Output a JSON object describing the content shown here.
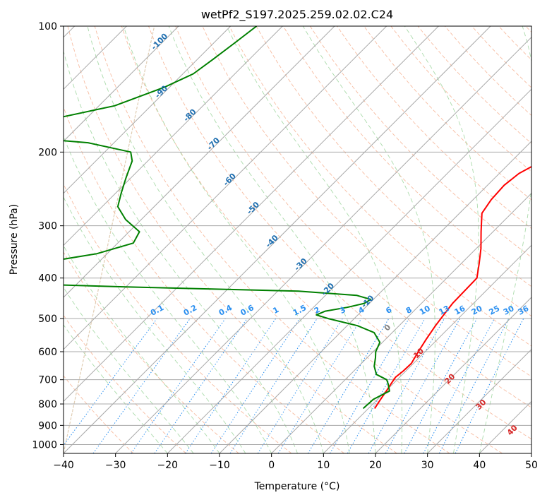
{
  "chart_data": {
    "type": "line",
    "title": "wetPf2_S197.2025.259.02.02.C24",
    "xlabel": "Temperature (°C)",
    "ylabel": "Pressure (hPa)",
    "xlim": [
      -40,
      50
    ],
    "ylim": [
      1050,
      100
    ],
    "y_scale": "log",
    "skew": "skew-T",
    "grid": true,
    "x_ticks": [
      -40,
      -30,
      -20,
      -10,
      0,
      10,
      20,
      30,
      40,
      50
    ],
    "y_ticks": [
      100,
      200,
      300,
      400,
      500,
      600,
      700,
      800,
      900,
      1000
    ],
    "series": [
      {
        "role": "temperature",
        "color": "#ff0000",
        "p": [
          820,
          780,
          745,
          715,
          690,
          668,
          640,
          600,
          560,
          520,
          490,
          460,
          430,
          400,
          370,
          340,
          310,
          280,
          260,
          240,
          225,
          210,
          200,
          188,
          175,
          160,
          145,
          130,
          115,
          100
        ],
        "t": [
          11.2,
          10.6,
          10.1,
          9.6,
          9.2,
          9.5,
          9.6,
          8.7,
          7.8,
          7.0,
          6.5,
          6.0,
          5.9,
          5.8,
          3.5,
          0.9,
          -2.3,
          -5.7,
          -6.5,
          -6.8,
          -6.2,
          -4.2,
          -2.0,
          2.4,
          8.2,
          13.2,
          17.8,
          23.8,
          26.8,
          30.0
        ]
      },
      {
        "role": "dewpoint",
        "color": "#008000",
        "p": [
          820,
          780,
          745,
          715,
          700,
          680,
          650,
          620,
          600,
          570,
          540,
          520,
          500,
          490,
          480,
          470,
          460,
          450,
          440,
          430,
          420,
          410,
          400,
          390,
          370,
          350,
          330,
          310,
          290,
          270,
          250,
          230,
          210,
          200,
          190,
          180,
          172,
          165,
          155,
          140,
          130,
          120,
          110,
          100
        ],
        "t": [
          9.0,
          9.2,
          10.7,
          9.0,
          8.0,
          5.0,
          3.0,
          1.6,
          0.5,
          -0.5,
          -3.5,
          -8.0,
          -15.0,
          -18.0,
          -17.0,
          -13.5,
          -11.0,
          -10.5,
          -14.0,
          -26.0,
          -60.0,
          -90.0,
          -95.0,
          -92.0,
          -82.0,
          -72.0,
          -67.0,
          -68.0,
          -73.0,
          -77.0,
          -79.0,
          -81.0,
          -83.0,
          -85.0,
          -95.0,
          -120.0,
          -115.0,
          -105.0,
          -97.0,
          -91.0,
          -88.0,
          -87.0,
          -86.0,
          -85.0
        ]
      }
    ],
    "mixing_ratio_labels": [
      "0.1",
      "0.2",
      "0.4",
      "0.6",
      "1",
      "1.5",
      "2",
      "3",
      "4",
      "6",
      "8",
      "10",
      "13",
      "16",
      "20",
      "25",
      "30",
      "36"
    ],
    "mixing_ratio_color": "#2a8ff0",
    "moist_adiabat_labels": [
      "0",
      "10",
      "20",
      "30",
      "40"
    ],
    "moist_adiabat_color": "#d62828",
    "isotherm_labels": [
      "-100",
      "-90",
      "-80",
      "-70",
      "-60",
      "-50",
      "-40",
      "-30",
      "-20",
      "-10"
    ],
    "isotherm_color": "#1f6fb0"
  }
}
